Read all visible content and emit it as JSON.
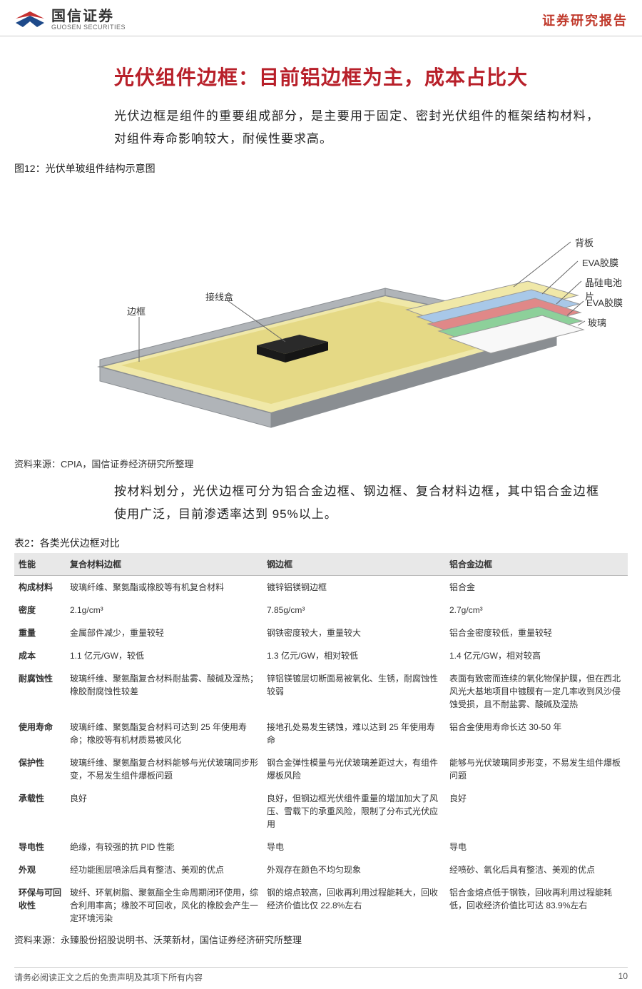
{
  "header": {
    "company_cn": "国信证券",
    "company_en": "GUOSEN SECURITIES",
    "right": "证券研究报告",
    "logo_colors": {
      "red": "#c53030",
      "blue": "#1e4a8a"
    }
  },
  "title": "光伏组件边框：目前铝边框为主，成本占比大",
  "intro": "光伏边框是组件的重要组成部分，是主要用于固定、密封光伏组件的框架结构材料，对组件寿命影响较大，耐候性要求高。",
  "figure": {
    "caption": "图12：光伏单玻组件结构示意图",
    "labels": {
      "frame": "边框",
      "jbox": "接线盒",
      "backsheet": "背板",
      "eva_top": "EVA胶膜",
      "cell": "晶硅电池片",
      "eva_bot": "EVA胶膜",
      "glass": "玻璃"
    },
    "colors": {
      "frame": "#b0b4b8",
      "frame_dark": "#8a8e92",
      "pale_yellow": "#f0e8a8",
      "dark_yellow": "#d4c250",
      "eva_blue": "#a8c8e8",
      "cell_block": "#2a2a2a",
      "cell_red": "#e08888",
      "eva_green": "#8dd09a",
      "glass_white": "#f8f8f8",
      "line": "#666666"
    },
    "source": "资料来源：CPIA，国信证券经济研究所整理"
  },
  "para2": "按材料划分，光伏边框可分为铝合金边框、钢边框、复合材料边框，其中铝合金边框使用广泛，目前渗透率达到 95%以上。",
  "table": {
    "caption": "表2：各类光伏边框对比",
    "headers": [
      "性能",
      "复合材料边框",
      "钢边框",
      "铝合金边框"
    ],
    "rows": [
      [
        "构成材料",
        "玻璃纤维、聚氨酯或橡胶等有机复合材料",
        "镀锌铝镁钢边框",
        "铝合金"
      ],
      [
        "密度",
        "2.1g/cm³",
        "7.85g/cm³",
        "2.7g/cm³"
      ],
      [
        "重量",
        "金属部件减少，重量较轻",
        "钢铁密度较大，重量较大",
        "铝合金密度较低，重量较轻"
      ],
      [
        "成本",
        "1.1 亿元/GW，较低",
        "1.3 亿元/GW，相对较低",
        "1.4 亿元/GW，相对较高"
      ],
      [
        "耐腐蚀性",
        "玻璃纤维、聚氨酯复合材料耐盐雾、酸碱及湿热；橡胶耐腐蚀性较差",
        "锌铝镁镀层切断面易被氧化、生锈，耐腐蚀性较弱",
        "表面有致密而连续的氧化物保护膜，但在西北风光大基地项目中镀膜有一定几率收到风沙侵蚀受损，且不耐盐雾、酸碱及湿热"
      ],
      [
        "使用寿命",
        "玻璃纤维、聚氨酯复合材料可达到 25 年使用寿命；橡胶等有机材质易被风化",
        "接地孔处易发生锈蚀，难以达到 25 年使用寿命",
        "铝合金使用寿命长达 30-50 年"
      ],
      [
        "保护性",
        "玻璃纤维、聚氨酯复合材料能够与光伏玻璃同步形变，不易发生组件爆板问题",
        "钢合金弹性模量与光伏玻璃差距过大，有组件爆板风险",
        "能够与光伏玻璃同步形变，不易发生组件爆板问题"
      ],
      [
        "承载性",
        "良好",
        "良好，但钢边框光伏组件重量的增加加大了风压、雪载下的承重风险，限制了分布式光伏应用",
        "良好"
      ],
      [
        "导电性",
        "绝缘，有较强的抗 PID 性能",
        "导电",
        "导电"
      ],
      [
        "外观",
        "经功能图层喷涂后具有整洁、美观的优点",
        "外观存在颜色不均匀现象",
        "经喷砂、氧化后具有整洁、美观的优点"
      ],
      [
        "环保与可回收性",
        "玻纤、环氧树脂、聚氨酯全生命周期闭环使用，综合利用率高；橡胶不可回收，风化的橡胶会产生一定环境污染",
        "钢的熔点较高，回收再利用过程能耗大，回收经济价值比仅 22.8%左右",
        "铝合金熔点低于钢铁，回收再利用过程能耗低，回收经济价值比可达 83.9%左右"
      ]
    ],
    "source": "资料来源：永臻股份招股说明书、沃莱新材，国信证券经济研究所整理"
  },
  "footer": {
    "left": "请务必阅读正文之后的免责声明及其项下所有内容",
    "page": "10"
  }
}
